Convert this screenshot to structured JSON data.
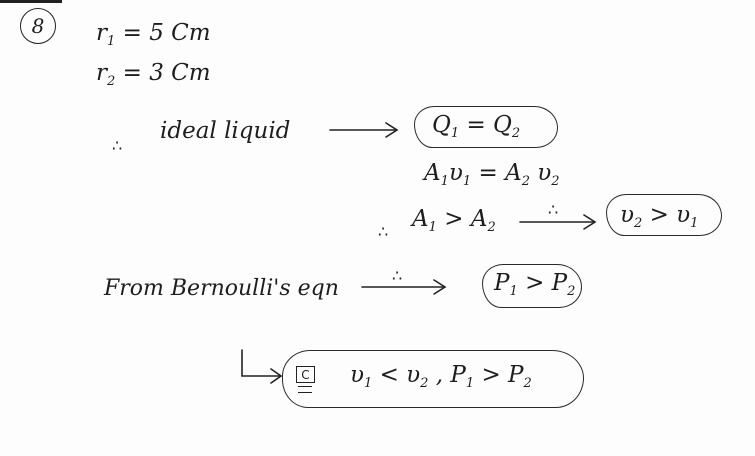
{
  "question_number": "8",
  "given": {
    "r1": {
      "symbol": "r",
      "sub": "1",
      "equals": "=",
      "value": "5 Cm"
    },
    "r2": {
      "symbol": "r",
      "sub": "2",
      "equals": "=",
      "value": "3 Cm"
    }
  },
  "therefore_symbol": "∴",
  "ideal_liquid": {
    "text": "ideal liquid",
    "result_Q1": "Q",
    "result_Q1_sub": "1",
    "result_eq": "=",
    "result_Q2": "Q",
    "result_Q2_sub": "2"
  },
  "continuity": {
    "A1": "A",
    "A1_sub": "1",
    "v1": "υ",
    "v1_sub": "1",
    "eq": "=",
    "A2": "A",
    "A2_sub": "2",
    "v2": "υ",
    "v2_sub": "2"
  },
  "area_compare": {
    "A1": "A",
    "A1_sub": "1",
    "gt": ">",
    "A2": "A",
    "A2_sub": "2",
    "result_v2": "υ",
    "result_v2_sub": "2",
    "result_gt": ">",
    "result_v1": "υ",
    "result_v1_sub": "1"
  },
  "bernoulli": {
    "text": "From Bernoulli's eqn",
    "P1": "P",
    "P1_sub": "1",
    "gt": ">",
    "P2": "P",
    "P2_sub": "2"
  },
  "answer": {
    "choice": "C",
    "v1": "υ",
    "v1_sub": "1",
    "lt": "<",
    "v2": "υ",
    "v2_sub": "2",
    "comma": ",",
    "P1": "P",
    "P1_sub": "1",
    "gt": ">",
    "P2": "P",
    "P2_sub": "2"
  }
}
